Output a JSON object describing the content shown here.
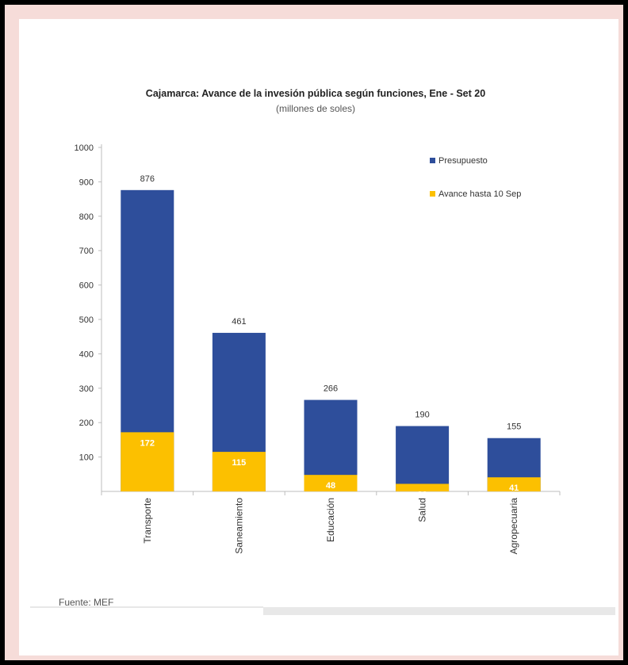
{
  "chart_data": {
    "type": "bar",
    "title": "Cajamarca: Avance de la invesión pública según funciones, Ene - Set 20",
    "subtitle": "(millones de soles)",
    "categories": [
      "Transporte",
      "Saneamiento",
      "Educación",
      "Salud",
      "Agropecuaria"
    ],
    "series": [
      {
        "name": "Presupuesto",
        "values": [
          876,
          461,
          266,
          190,
          155
        ],
        "color": "#2e4e9b"
      },
      {
        "name": "Avance hasta 10 Sep",
        "values": [
          172,
          115,
          48,
          22,
          41
        ],
        "color": "#fcc000"
      }
    ],
    "ylim": [
      0,
      1000
    ],
    "yticks": [
      100,
      200,
      300,
      400,
      500,
      600,
      700,
      800,
      900,
      1000
    ],
    "legend_position": "top-right",
    "grid": false,
    "source": "Fuente: MEF"
  }
}
